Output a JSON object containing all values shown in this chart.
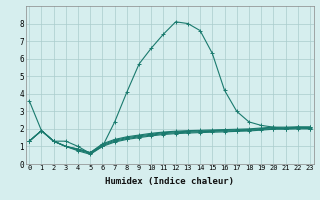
{
  "x": [
    0,
    1,
    2,
    3,
    4,
    5,
    6,
    7,
    8,
    9,
    10,
    11,
    12,
    13,
    14,
    15,
    16,
    17,
    18,
    19,
    20,
    21,
    22,
    23
  ],
  "y_main": [
    3.6,
    1.9,
    1.3,
    1.3,
    1.0,
    0.6,
    1.0,
    2.4,
    4.1,
    5.7,
    6.6,
    7.4,
    8.1,
    8.0,
    7.6,
    6.3,
    4.2,
    3.0,
    2.4,
    2.2,
    2.1,
    2.0,
    2.1,
    2.0
  ],
  "y_flat1": [
    1.3,
    1.9,
    1.3,
    1.0,
    0.85,
    0.65,
    1.15,
    1.4,
    1.55,
    1.65,
    1.75,
    1.82,
    1.87,
    1.9,
    1.92,
    1.94,
    1.96,
    1.98,
    2.0,
    2.05,
    2.1,
    2.1,
    2.12,
    2.12
  ],
  "y_flat2": [
    1.3,
    1.9,
    1.3,
    1.0,
    0.85,
    0.65,
    1.1,
    1.35,
    1.5,
    1.6,
    1.7,
    1.78,
    1.83,
    1.86,
    1.88,
    1.9,
    1.92,
    1.94,
    1.96,
    2.01,
    2.06,
    2.06,
    2.08,
    2.08
  ],
  "y_flat3": [
    1.3,
    1.9,
    1.3,
    1.0,
    0.8,
    0.6,
    1.05,
    1.3,
    1.45,
    1.55,
    1.65,
    1.73,
    1.78,
    1.81,
    1.84,
    1.86,
    1.88,
    1.9,
    1.92,
    1.97,
    2.02,
    2.02,
    2.04,
    2.04
  ],
  "y_flat4": [
    1.3,
    1.9,
    1.3,
    1.0,
    0.75,
    0.55,
    1.0,
    1.25,
    1.4,
    1.5,
    1.6,
    1.68,
    1.73,
    1.76,
    1.79,
    1.81,
    1.83,
    1.86,
    1.88,
    1.93,
    1.98,
    1.98,
    2.0,
    2.0
  ],
  "line_color": "#1a7a6e",
  "bg_color": "#d6eeee",
  "grid_color": "#aacccc",
  "xlabel": "Humidex (Indice chaleur)",
  "ylim": [
    0,
    9
  ],
  "xlim": [
    -0.3,
    23.3
  ],
  "yticks": [
    0,
    1,
    2,
    3,
    4,
    5,
    6,
    7,
    8
  ],
  "xticks": [
    0,
    1,
    2,
    3,
    4,
    5,
    6,
    7,
    8,
    9,
    10,
    11,
    12,
    13,
    14,
    15,
    16,
    17,
    18,
    19,
    20,
    21,
    22,
    23
  ],
  "xtick_labels": [
    "0",
    "1",
    "2",
    "3",
    "4",
    "5",
    "6",
    "7",
    "8",
    "9",
    "10",
    "11",
    "12",
    "13",
    "14",
    "15",
    "16",
    "17",
    "18",
    "19",
    "20",
    "21",
    "22",
    "23"
  ],
  "marker": "+",
  "markersize": 3.5,
  "linewidth": 0.8
}
